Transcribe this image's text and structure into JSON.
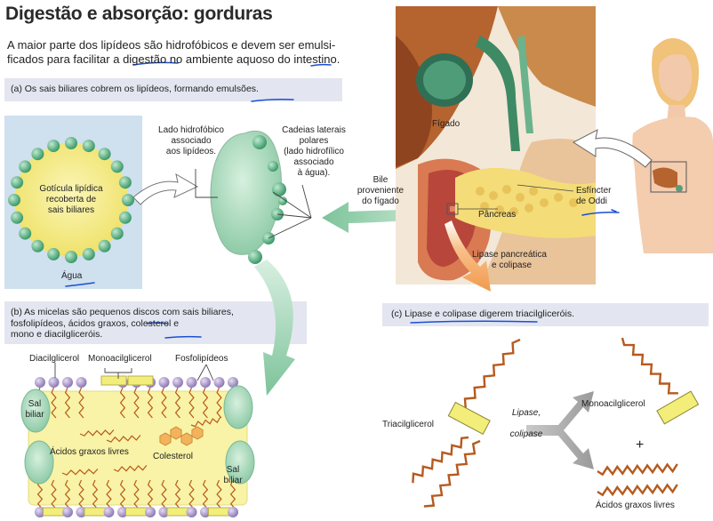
{
  "title": "Digestão e absorção: gorduras",
  "intro": {
    "line1": "A maior parte dos lipídeos são hidrofóbicos e devem ser emulsi-",
    "line2": "ficados para facilitar a digestão no ambiente aquoso do intestino."
  },
  "section_a": {
    "caption": "(a) Os sais biliares cobrem os lipídeos, formando emulsões.",
    "droplet_label": [
      "Gotícula lipídica",
      "recoberta de",
      "sais biliares"
    ],
    "water_label": "Água",
    "hydrophobic_label": [
      "Lado hidrofóbico",
      "associado",
      "aos lipídeos."
    ],
    "polar_label": [
      "Cadeias laterais",
      "polares",
      "(lado hidrofílico",
      "associado",
      "à água)."
    ]
  },
  "anatomy": {
    "liver_label": "Fígado",
    "bile_label": [
      "Bile",
      "proveniente",
      "do fígado"
    ],
    "pancreas_label": "Pâncreas",
    "sphincter_label": [
      "Esfíncter",
      "de Oddi"
    ],
    "lipase_label": [
      "Lipase pancreática",
      "e colipase"
    ]
  },
  "section_b": {
    "caption": [
      "(b) As micelas são pequenos discos com sais biliares,",
      "fosfolipídeos, ácidos graxos, colesterol e",
      "mono e diacilgliceróis."
    ],
    "diacyl_label": "Diacilglicerol",
    "monoacyl_label": "Monoacilglicerol",
    "phospho_label": "Fosfolipídeos",
    "salt_left": [
      "Sal",
      "biliar"
    ],
    "salt_right": [
      "Sal",
      "biliar"
    ],
    "fatty_acids_label": "Ácidos graxos livres",
    "cholesterol_label": "Colesterol"
  },
  "section_c": {
    "caption": "(c) Lipase e colipase digerem triacilgliceróis.",
    "triacyl_label": "Triacilglicerol",
    "enzyme_label": [
      "Lipase,",
      "colipase"
    ],
    "monoacyl_label": "Monoacilglicerol",
    "plus": "+",
    "fatty_acids_label": "Ácidos graxos livres"
  },
  "colors": {
    "band": "#e3e6f0",
    "panel_a": "#cfe0ee",
    "micelle": "#a9d8b8",
    "bead": "#5fb48a",
    "fat": "#f6ef9a",
    "orange_arrow": "#f5a15a",
    "green_arrow": "#8fcba7",
    "chain": "#b65a1e",
    "glycerol": "#f3ee7a",
    "head": "#b9a8d6",
    "annotation": "#1a4fd6"
  }
}
